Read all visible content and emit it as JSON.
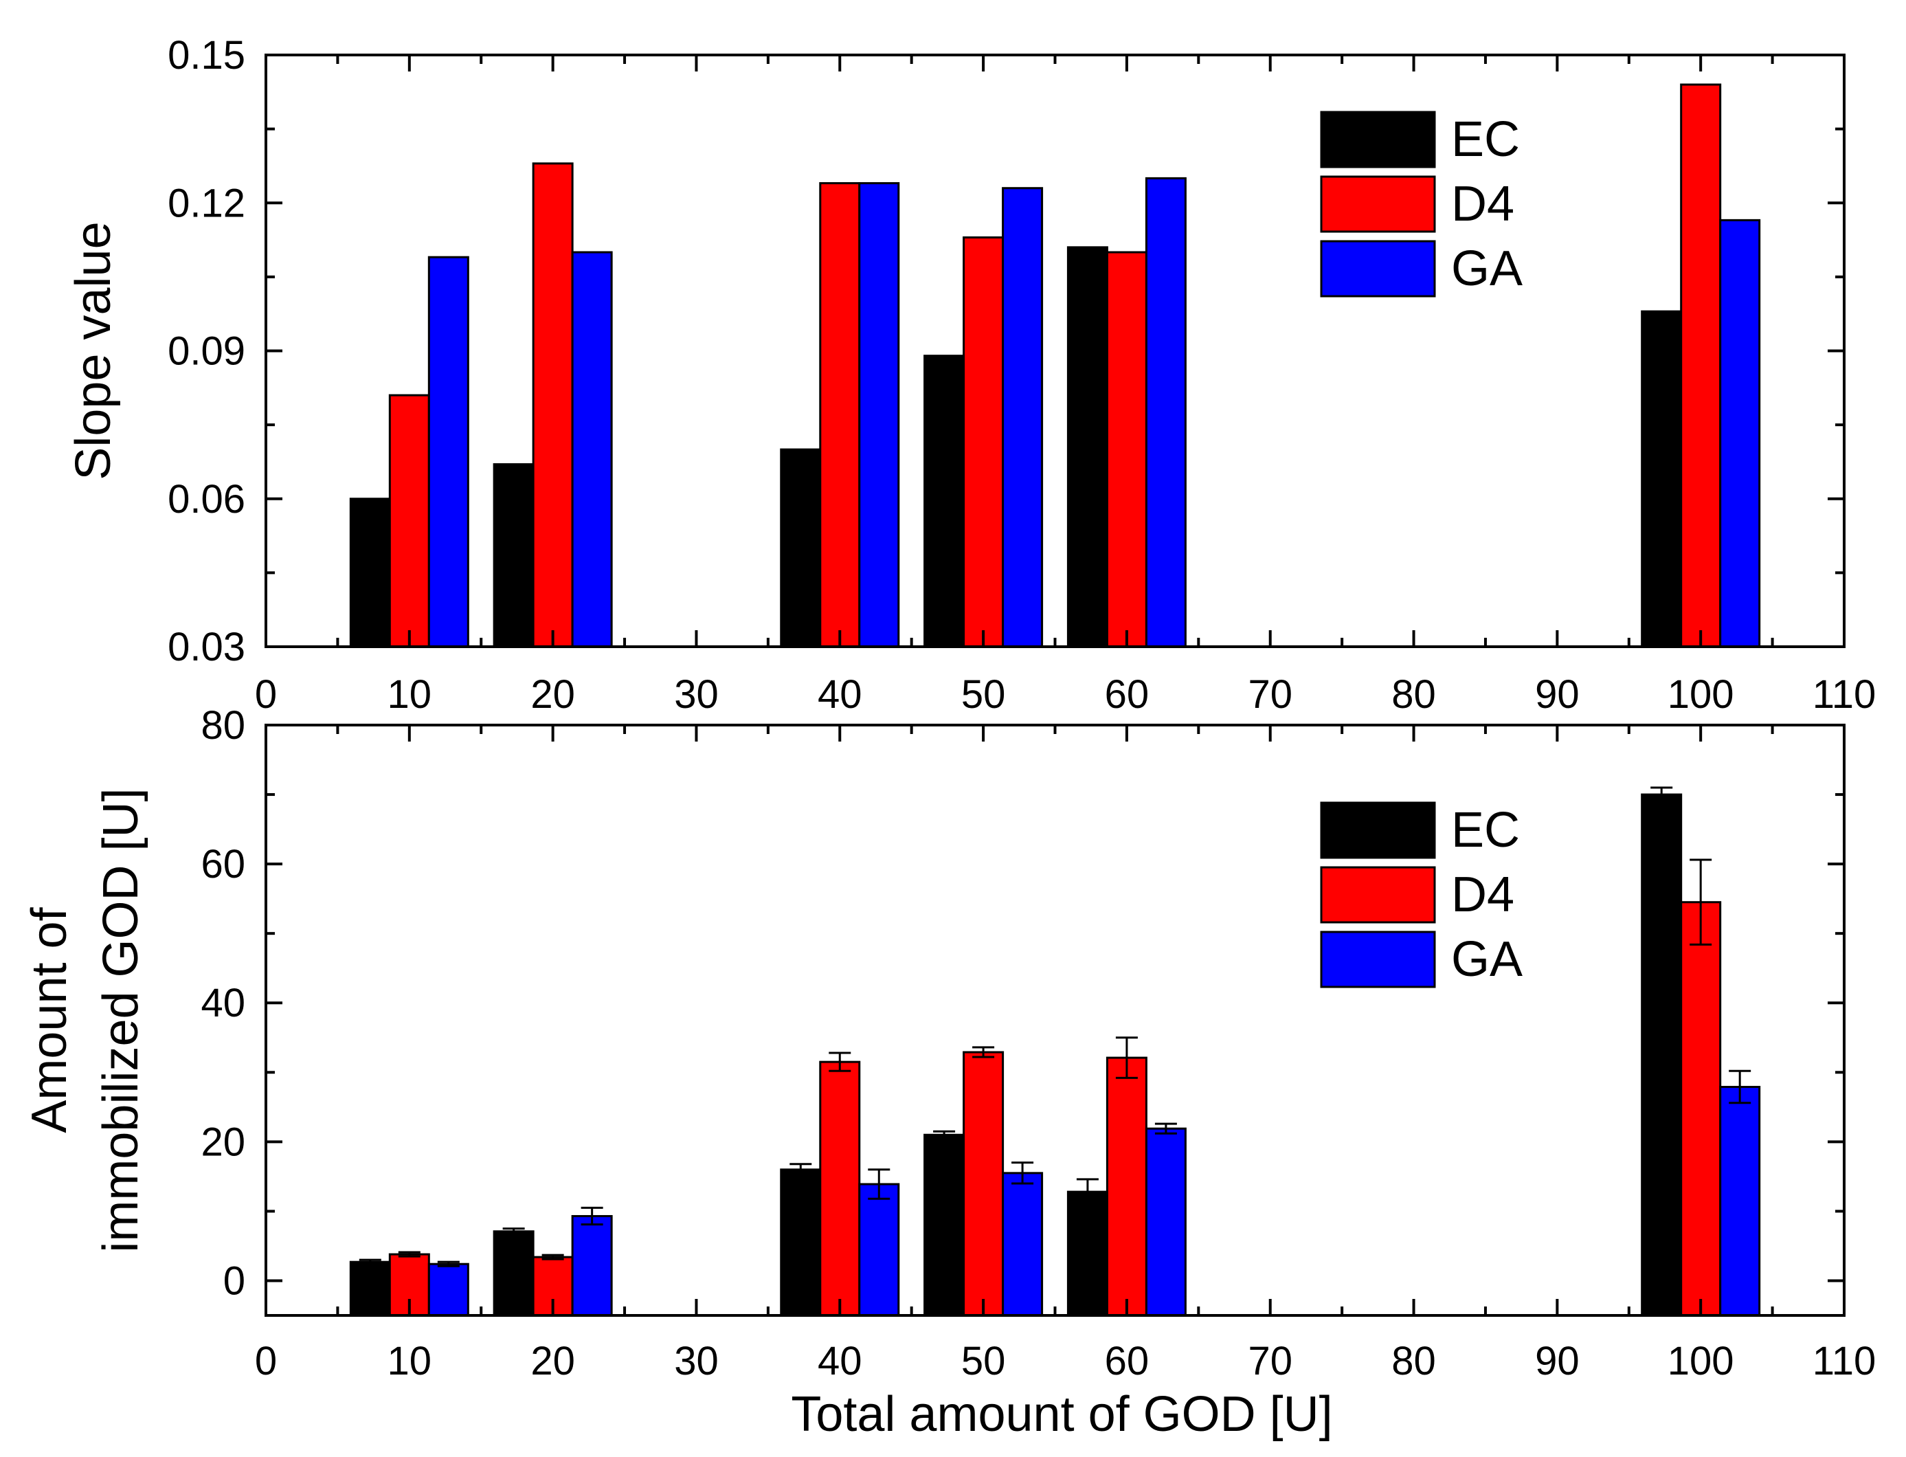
{
  "chart_data": [
    {
      "type": "bar",
      "panel": "top",
      "title": "",
      "xlabel": "",
      "ylabel": "Slope value",
      "xlim": [
        0,
        110
      ],
      "ylim": [
        0.03,
        0.15
      ],
      "xticks": [
        "0",
        "10",
        "20",
        "30",
        "40",
        "50",
        "60",
        "70",
        "80",
        "90",
        "100",
        "110"
      ],
      "yticks": [
        "0.03",
        "0.06",
        "0.09",
        "0.12",
        "0.15"
      ],
      "categories": [
        10,
        20,
        40,
        50,
        60,
        100
      ],
      "legend_position": "top-right",
      "series": [
        {
          "name": "EC",
          "color": "#000000",
          "values": [
            0.06,
            0.067,
            0.07,
            0.089,
            0.111,
            0.098
          ]
        },
        {
          "name": "D4",
          "color": "#ff0000",
          "values": [
            0.081,
            0.128,
            0.124,
            0.113,
            0.11,
            0.144
          ]
        },
        {
          "name": "GA",
          "color": "#0000ff",
          "values": [
            0.109,
            0.11,
            0.124,
            0.123,
            0.125,
            0.1165
          ]
        }
      ]
    },
    {
      "type": "bar",
      "panel": "bottom",
      "title": "",
      "xlabel": "Total amount of GOD [U]",
      "ylabel_lines": [
        "Amount of",
        "immobilized GOD [U]"
      ],
      "xlim": [
        0,
        110
      ],
      "ylim": [
        -5,
        80
      ],
      "xticks": [
        "0",
        "10",
        "20",
        "30",
        "40",
        "50",
        "60",
        "70",
        "80",
        "90",
        "100",
        "110"
      ],
      "yticks": [
        "0",
        "20",
        "40",
        "60",
        "80"
      ],
      "categories": [
        10,
        20,
        40,
        50,
        60,
        100
      ],
      "legend_position": "top-right",
      "series": [
        {
          "name": "EC",
          "color": "#000000",
          "values": [
            2.7,
            7.1,
            16.0,
            21.0,
            12.8,
            70.0
          ],
          "errors": [
            0.3,
            0.4,
            0.8,
            0.5,
            1.8,
            1.0
          ]
        },
        {
          "name": "D4",
          "color": "#ff0000",
          "values": [
            3.8,
            3.4,
            31.5,
            32.9,
            32.1,
            54.5
          ],
          "errors": [
            0.3,
            0.3,
            1.3,
            0.7,
            2.9,
            6.1
          ]
        },
        {
          "name": "GA",
          "color": "#0000ff",
          "values": [
            2.4,
            9.3,
            13.9,
            15.5,
            21.9,
            27.9
          ],
          "errors": [
            0.3,
            1.2,
            2.1,
            1.5,
            0.7,
            2.3
          ]
        }
      ]
    }
  ]
}
